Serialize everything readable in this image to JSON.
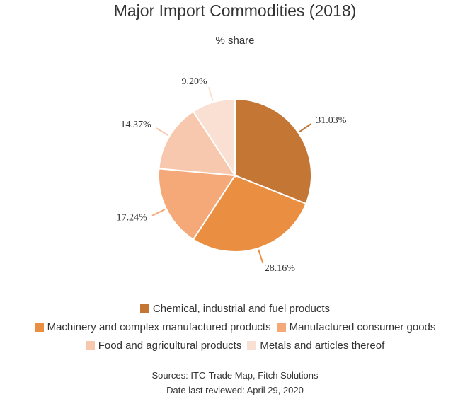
{
  "title": "Major Import Commodities (2018)",
  "subtitle": "% share",
  "chart_data": {
    "type": "pie",
    "slices": [
      {
        "label": "Chemical, industrial and fuel products",
        "value": 31.03,
        "display": "31.03%",
        "color": "#c47634"
      },
      {
        "label": "Machinery and complex manufactured products",
        "value": 28.16,
        "display": "28.16%",
        "color": "#ea8f42"
      },
      {
        "label": "Manufactured consumer goods",
        "value": 17.24,
        "display": "17.24%",
        "color": "#f5a979"
      },
      {
        "label": "Food and agricultural products",
        "value": 14.37,
        "display": "14.37%",
        "color": "#f7c8ae"
      },
      {
        "label": "Metals and articles thereof",
        "value": 9.2,
        "display": "9.20%",
        "color": "#fae0d3"
      }
    ],
    "start": "top",
    "direction": "clockwise",
    "legend": "bottom"
  },
  "footer": {
    "sources": "Sources: ITC-Trade Map, Fitch Solutions",
    "reviewed": "Date last reviewed: April 29, 2020"
  }
}
